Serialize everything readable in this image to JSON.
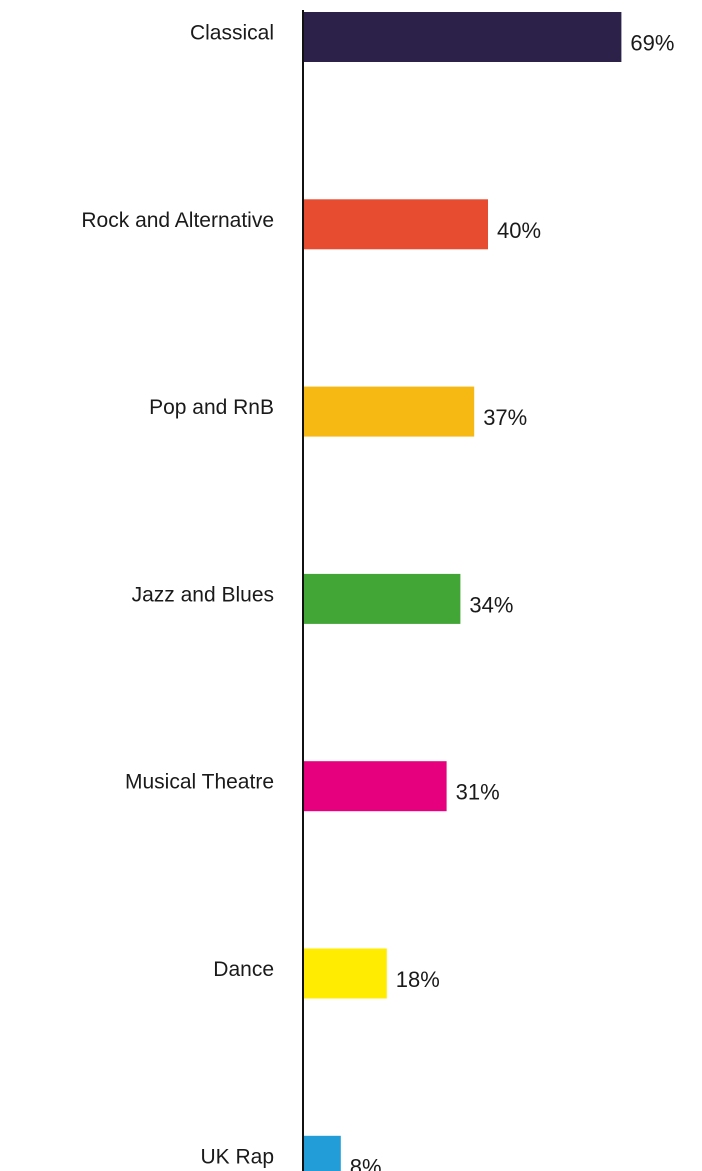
{
  "chart_data": {
    "type": "bar",
    "orientation": "horizontal",
    "categories": [
      "Classical",
      "Rock  and Alternative",
      "Pop and RnB",
      "Jazz and Blues",
      "Musical Theatre",
      "Dance",
      "UK Rap"
    ],
    "values": [
      69,
      40,
      37,
      34,
      31,
      18,
      8
    ],
    "value_labels": [
      "69%",
      "40%",
      "37%",
      "34%",
      "31%",
      "18%",
      "8%"
    ],
    "unit": "%",
    "colors": [
      "#2b2149",
      "#e74c30",
      "#f6b913",
      "#42a637",
      "#e6007e",
      "#ffec00",
      "#239dd8"
    ],
    "title": "",
    "xlabel": "",
    "ylabel": "",
    "xlim": [
      0,
      69
    ],
    "grid": false,
    "legend": "none"
  }
}
